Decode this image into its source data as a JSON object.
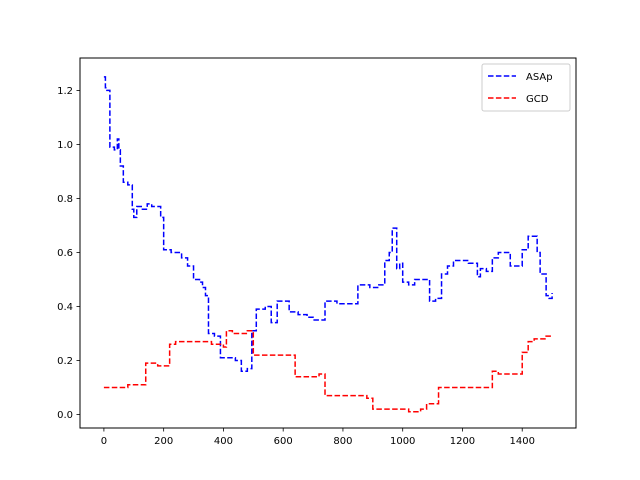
{
  "chart_data": {
    "type": "line",
    "title": "",
    "xlabel": "",
    "ylabel": "",
    "xlim": [
      -80,
      1580
    ],
    "ylim": [
      -0.05,
      1.32
    ],
    "xticks": [
      0,
      200,
      400,
      600,
      800,
      1000,
      1200,
      1400
    ],
    "xtick_labels": [
      "0",
      "200",
      "400",
      "600",
      "800",
      "1000",
      "1200",
      "1400"
    ],
    "yticks": [
      0.0,
      0.2,
      0.4,
      0.6,
      0.8,
      1.0,
      1.2
    ],
    "ytick_labels": [
      "0.0",
      "0.2",
      "0.4",
      "0.6",
      "0.8",
      "1.0",
      "1.2"
    ],
    "grid": false,
    "legend": "top-right",
    "series": [
      {
        "name": "ASAp",
        "color": "#0000ff",
        "linestyle": "dashed",
        "x": [
          0,
          5,
          10,
          20,
          35,
          45,
          50,
          55,
          65,
          80,
          95,
          100,
          110,
          125,
          145,
          160,
          170,
          190,
          200,
          215,
          225,
          240,
          260,
          280,
          300,
          320,
          330,
          340,
          350,
          370,
          390,
          400,
          420,
          440,
          460,
          480,
          495,
          510,
          540,
          560,
          580,
          600,
          620,
          650,
          680,
          700,
          720,
          740,
          780,
          820,
          850,
          870,
          890,
          920,
          940,
          955,
          965,
          980,
          990,
          1000,
          1020,
          1040,
          1070,
          1090,
          1110,
          1130,
          1150,
          1170,
          1190,
          1200,
          1220,
          1250,
          1260,
          1280,
          1300,
          1320,
          1340,
          1360,
          1380,
          1400,
          1410,
          1420,
          1440,
          1450,
          1460,
          1480,
          1490,
          1500
        ],
        "y": [
          1.25,
          1.21,
          1.2,
          0.99,
          0.98,
          1.02,
          0.98,
          0.92,
          0.86,
          0.85,
          0.76,
          0.73,
          0.77,
          0.76,
          0.78,
          0.77,
          0.77,
          0.73,
          0.61,
          0.61,
          0.6,
          0.6,
          0.58,
          0.55,
          0.5,
          0.49,
          0.47,
          0.44,
          0.3,
          0.29,
          0.21,
          0.21,
          0.21,
          0.2,
          0.16,
          0.17,
          0.31,
          0.39,
          0.4,
          0.34,
          0.42,
          0.42,
          0.38,
          0.37,
          0.36,
          0.35,
          0.35,
          0.42,
          0.41,
          0.41,
          0.48,
          0.48,
          0.47,
          0.48,
          0.57,
          0.6,
          0.69,
          0.54,
          0.56,
          0.49,
          0.48,
          0.5,
          0.5,
          0.42,
          0.43,
          0.52,
          0.55,
          0.57,
          0.57,
          0.57,
          0.56,
          0.51,
          0.54,
          0.53,
          0.58,
          0.6,
          0.6,
          0.55,
          0.55,
          0.61,
          0.61,
          0.66,
          0.66,
          0.6,
          0.52,
          0.44,
          0.43,
          0.45
        ]
      },
      {
        "name": "GCD",
        "color": "#ff0000",
        "linestyle": "dashed",
        "x": [
          0,
          30,
          80,
          120,
          140,
          160,
          180,
          200,
          220,
          240,
          280,
          320,
          360,
          380,
          400,
          410,
          430,
          460,
          480,
          500,
          540,
          580,
          620,
          640,
          660,
          700,
          720,
          740,
          780,
          820,
          860,
          880,
          900,
          940,
          980,
          1020,
          1060,
          1080,
          1100,
          1120,
          1160,
          1200,
          1240,
          1280,
          1300,
          1320,
          1360,
          1380,
          1400,
          1420,
          1440,
          1460,
          1480,
          1500
        ],
        "y": [
          0.1,
          0.1,
          0.11,
          0.11,
          0.19,
          0.19,
          0.18,
          0.18,
          0.26,
          0.27,
          0.27,
          0.27,
          0.26,
          0.26,
          0.25,
          0.31,
          0.3,
          0.3,
          0.31,
          0.22,
          0.22,
          0.22,
          0.22,
          0.14,
          0.14,
          0.14,
          0.15,
          0.07,
          0.07,
          0.07,
          0.07,
          0.06,
          0.02,
          0.02,
          0.02,
          0.01,
          0.02,
          0.04,
          0.04,
          0.1,
          0.1,
          0.1,
          0.1,
          0.1,
          0.16,
          0.15,
          0.15,
          0.15,
          0.23,
          0.27,
          0.28,
          0.28,
          0.29,
          0.29
        ]
      }
    ]
  }
}
